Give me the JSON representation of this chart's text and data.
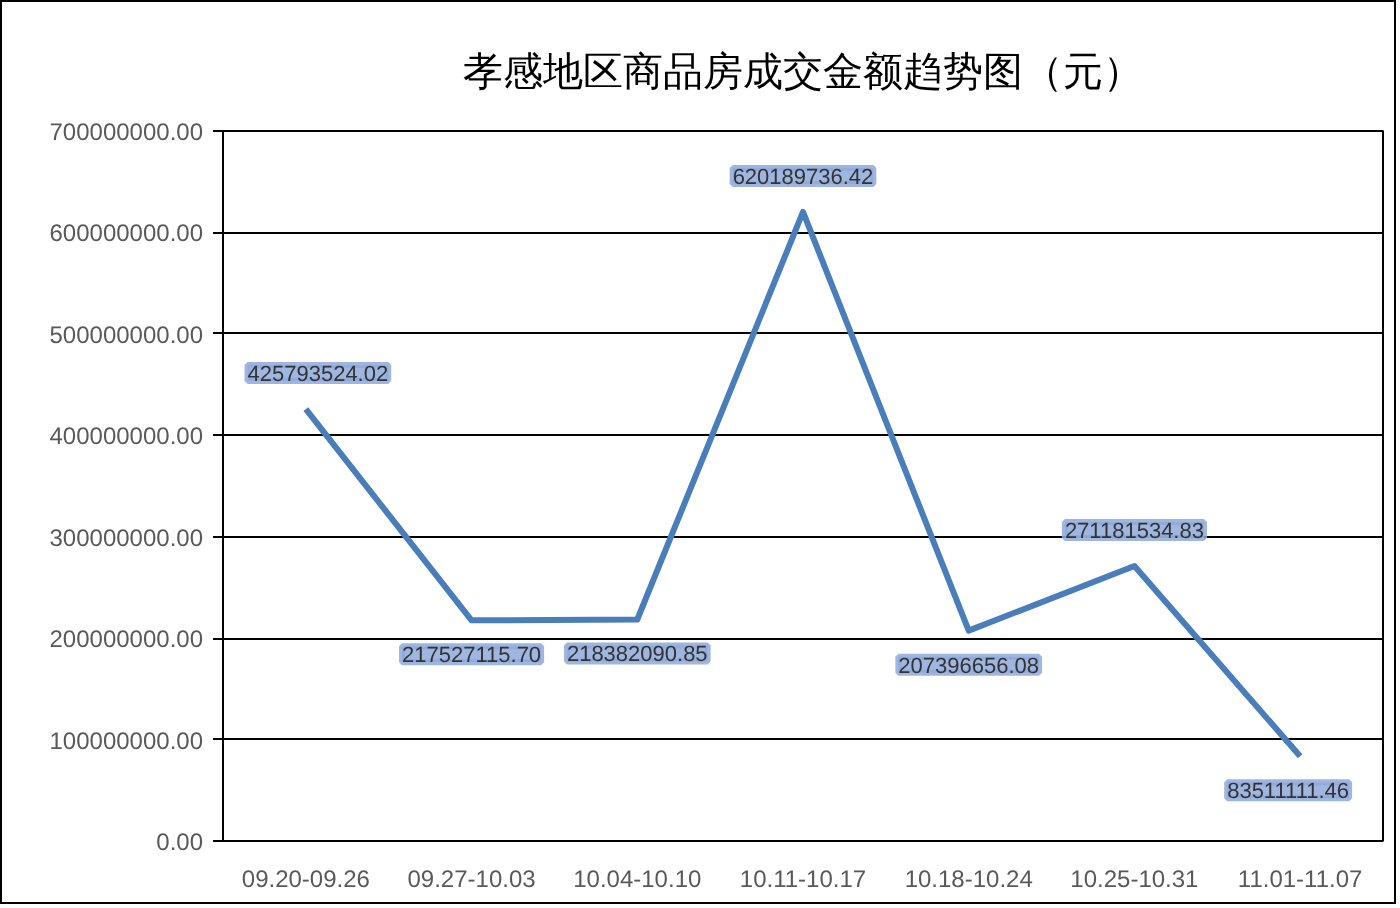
{
  "chart_data": {
    "type": "line",
    "title": "孝感地区商品房成交金额趋势图（元）",
    "categories": [
      "09.20-09.26",
      "09.27-10.03",
      "10.04-10.10",
      "10.11-10.17",
      "10.18-10.24",
      "10.25-10.31",
      "11.01-11.07"
    ],
    "series": [
      {
        "color": "#4a7ebb",
        "values": [
          425793524.02,
          217527115.7,
          218382090.85,
          620189736.42,
          207396656.08,
          271181534.83,
          83511111.46
        ],
        "value_labels": [
          "425793524.02",
          "217527115.70",
          "218382090.85",
          "620189736.42",
          "207396656.08",
          "271181534.83",
          "83511111.46"
        ]
      }
    ],
    "ylim": [
      0,
      700000000
    ],
    "yticks": [
      {
        "value": 0,
        "label": "0.00"
      },
      {
        "value": 100000000,
        "label": "100000000.00"
      },
      {
        "value": 200000000,
        "label": "200000000.00"
      },
      {
        "value": 300000000,
        "label": "300000000.00"
      },
      {
        "value": 400000000,
        "label": "400000000.00"
      },
      {
        "value": 500000000,
        "label": "500000000.00"
      },
      {
        "value": 600000000,
        "label": "600000000.00"
      },
      {
        "value": 700000000,
        "label": "700000000.00"
      }
    ],
    "grid": "y",
    "line_style": "solid"
  }
}
